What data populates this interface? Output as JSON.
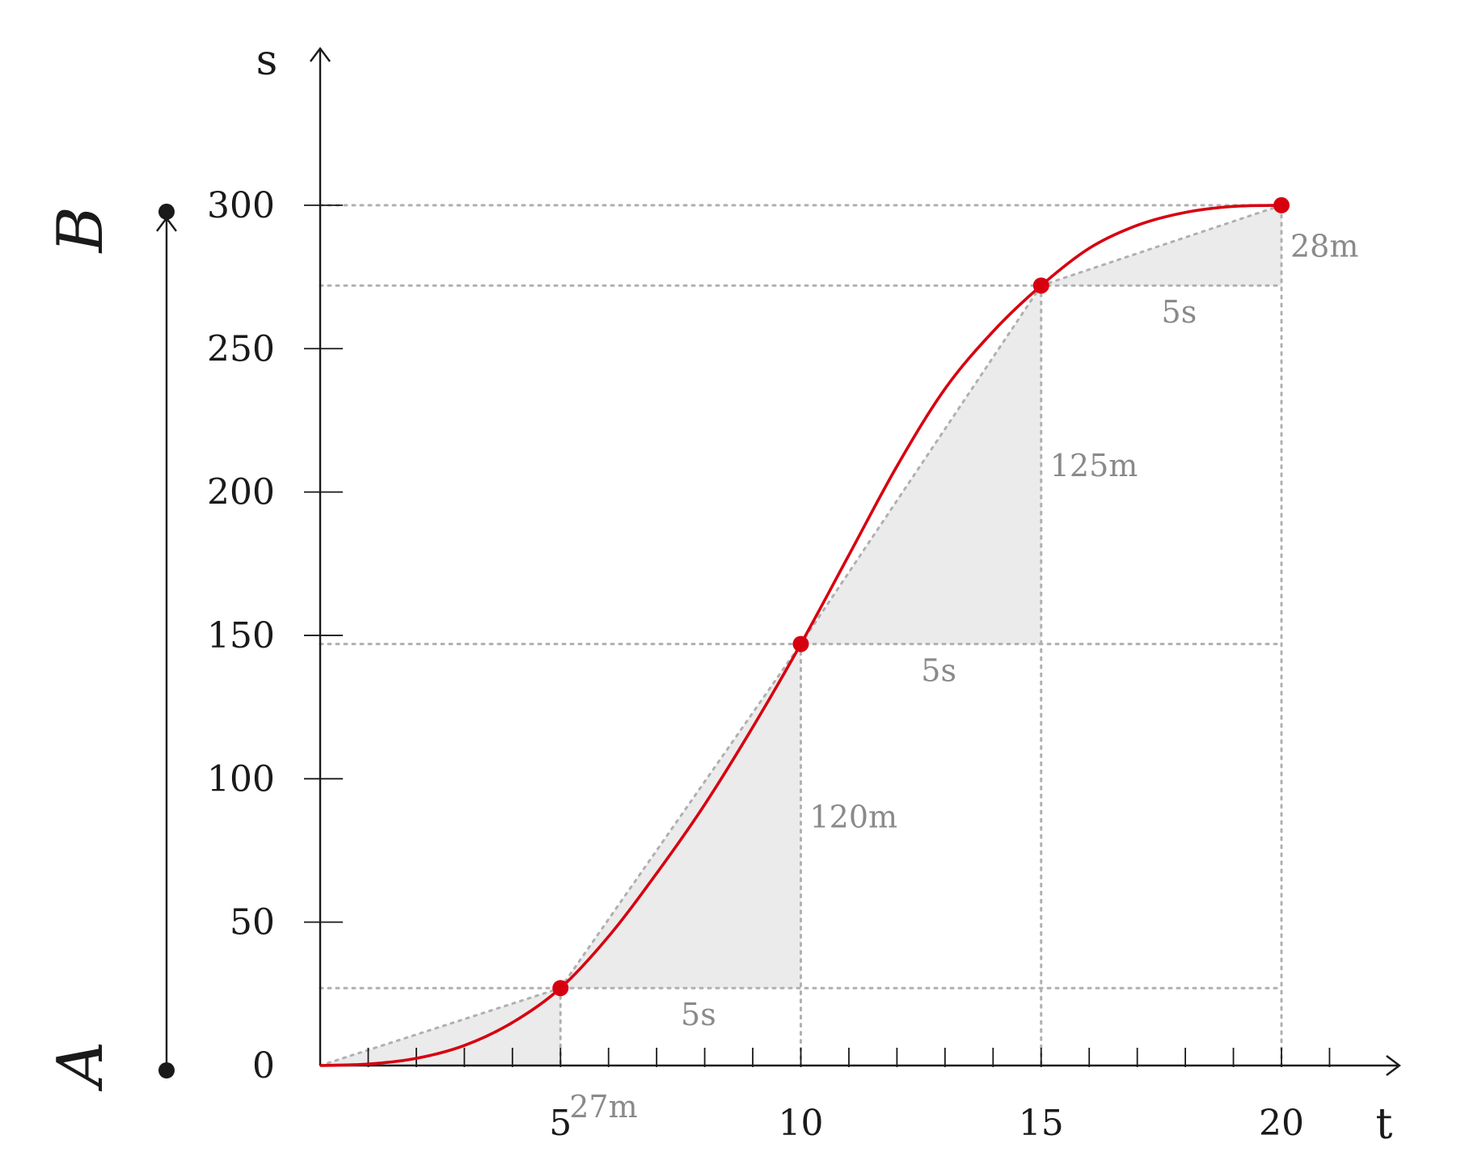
{
  "chart_data": {
    "type": "line",
    "title": "",
    "xlabel": "t",
    "ylabel": "s",
    "xlim": [
      0,
      22
    ],
    "ylim": [
      0,
      300
    ],
    "x_ticks": [
      5,
      10,
      15,
      20
    ],
    "y_ticks": [
      0,
      50,
      100,
      150,
      200,
      250,
      300
    ],
    "x_minor_step": 1,
    "grid": false,
    "series": [
      {
        "color": "#d7000f",
        "points": [
          [
            5,
            27
          ],
          [
            10,
            147
          ],
          [
            15,
            272
          ],
          [
            20,
            300
          ]
        ],
        "curve": [
          [
            0,
            0
          ],
          [
            1,
            0.5
          ],
          [
            2,
            2.5
          ],
          [
            3,
            7
          ],
          [
            4,
            15
          ],
          [
            5,
            27
          ],
          [
            6,
            45
          ],
          [
            7,
            67
          ],
          [
            8,
            91
          ],
          [
            9,
            118
          ],
          [
            10,
            147
          ],
          [
            11,
            178
          ],
          [
            12,
            209
          ],
          [
            13,
            236
          ],
          [
            14,
            256
          ],
          [
            15,
            272
          ],
          [
            16,
            285
          ],
          [
            17,
            293
          ],
          [
            18,
            297.5
          ],
          [
            19,
            299.6
          ],
          [
            20,
            300
          ]
        ]
      }
    ],
    "segments": [
      {
        "t_start": 0,
        "t_end": 5,
        "s_start": 0,
        "s_end": 27,
        "distance_label": "27m",
        "time_label": ""
      },
      {
        "t_start": 5,
        "t_end": 10,
        "s_start": 27,
        "s_end": 147,
        "distance_label": "120m",
        "time_label": "5s"
      },
      {
        "t_start": 10,
        "t_end": 15,
        "s_start": 147,
        "s_end": 272,
        "distance_label": "125m",
        "time_label": "5s"
      },
      {
        "t_start": 15,
        "t_end": 20,
        "s_start": 272,
        "s_end": 300,
        "distance_label": "28m",
        "time_label": "5s"
      }
    ],
    "endpoints": {
      "start_label": "A",
      "end_label": "B",
      "start_s": 0,
      "end_s": 300
    },
    "colors": {
      "curve": "#d7000f",
      "axis": "#1a1a1a",
      "guide": "#b0b0b0",
      "shade": "#ebebeb",
      "annotation": "#8a8a8a"
    }
  }
}
